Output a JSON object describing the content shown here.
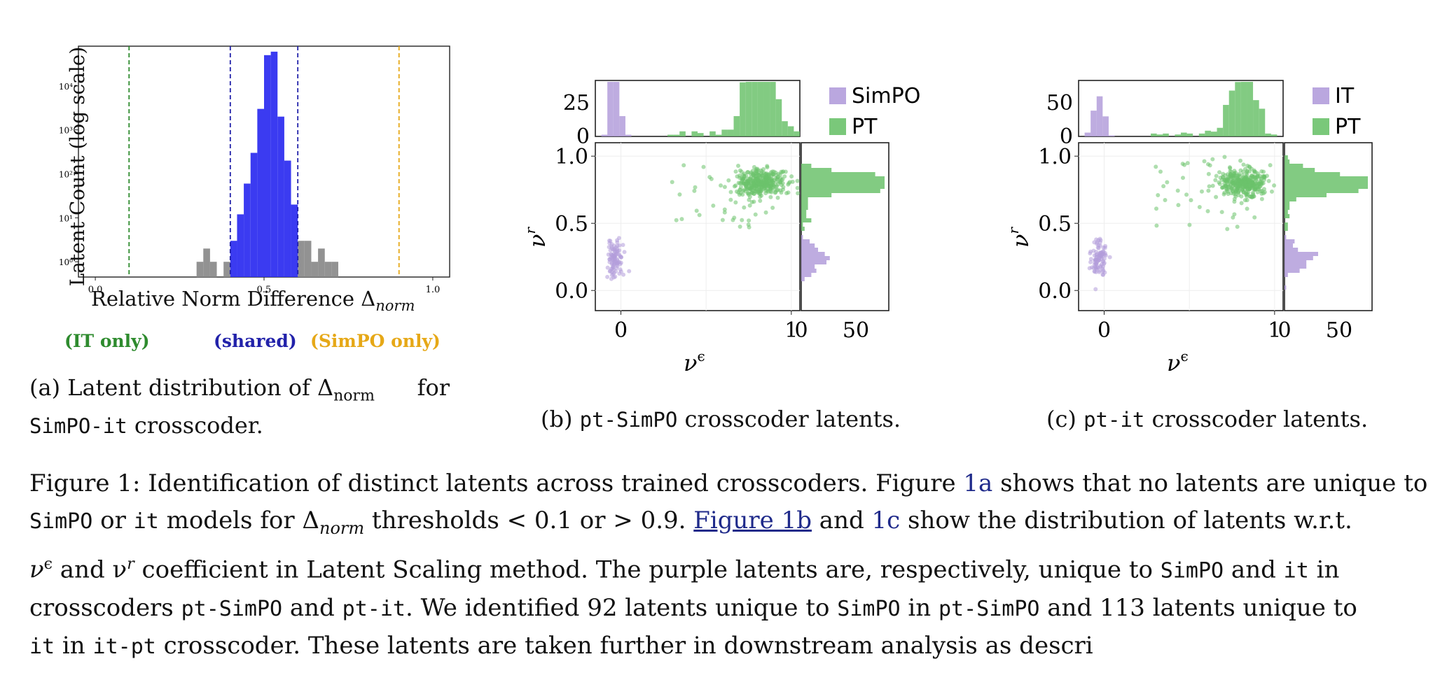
{
  "figure": {
    "panel_a": {
      "chart_data": {
        "type": "bar",
        "ylabel": "Latent Count (log scale)",
        "xlabel_prefix": "Relative Norm Difference Δ",
        "xlabel_sub": "norm",
        "x_ticks": [
          "0.0",
          "0.5",
          "1.0"
        ],
        "y_ticks": [
          "10⁰",
          "10¹",
          "10²",
          "10³",
          "10⁴"
        ],
        "y_scale": "log",
        "xlim": [
          -0.05,
          1.05
        ],
        "thresholds": [
          {
            "x": 0.1,
            "color": "#2e8b2e"
          },
          {
            "x": 0.4,
            "color": "#2222aa"
          },
          {
            "x": 0.6,
            "color": "#2222aa"
          },
          {
            "x": 0.9,
            "color": "#e6a817"
          }
        ],
        "bin_width": 0.02,
        "bins_gray": [
          {
            "x": 0.3,
            "count": 1
          },
          {
            "x": 0.32,
            "count": 2
          },
          {
            "x": 0.34,
            "count": 1
          },
          {
            "x": 0.38,
            "count": 1
          },
          {
            "x": 0.6,
            "count": 3
          },
          {
            "x": 0.62,
            "count": 3
          },
          {
            "x": 0.64,
            "count": 1
          },
          {
            "x": 0.66,
            "count": 2
          },
          {
            "x": 0.68,
            "count": 1
          },
          {
            "x": 0.7,
            "count": 1
          }
        ],
        "bins_blue": [
          {
            "x": 0.4,
            "count": 3
          },
          {
            "x": 0.42,
            "count": 12
          },
          {
            "x": 0.44,
            "count": 60
          },
          {
            "x": 0.46,
            "count": 300
          },
          {
            "x": 0.48,
            "count": 3000
          },
          {
            "x": 0.5,
            "count": 50000
          },
          {
            "x": 0.52,
            "count": 60000
          },
          {
            "x": 0.54,
            "count": 2000
          },
          {
            "x": 0.56,
            "count": 200
          },
          {
            "x": 0.58,
            "count": 20
          }
        ],
        "region_labels": [
          {
            "text": "(IT only)",
            "color": "#2e8b2e"
          },
          {
            "text": "(shared)",
            "color": "#2222aa"
          },
          {
            "text": "(SimPO only)",
            "color": "#e6a817"
          }
        ]
      },
      "caption_prefix": "(a) Latent distribution of Δ",
      "caption_sub": "norm",
      "caption_suffix": " for",
      "caption_mono": "SimPO-it",
      "caption_end": " crosscoder."
    },
    "panel_b": {
      "chart_data": {
        "type": "scatter",
        "xlabel": "ν",
        "xlabel_sup": "ϵ",
        "ylabel": "ν",
        "ylabel_sup": "r",
        "x_ticks": [
          "0",
          "1"
        ],
        "y_ticks": [
          "0.0",
          "0.5",
          "1.0"
        ],
        "top_hist_ticks": [
          "0",
          "25"
        ],
        "right_hist_ticks": [
          "0",
          "50"
        ],
        "series": [
          {
            "name": "SimPO",
            "color": "#b39ddb"
          },
          {
            "name": "PT",
            "color": "#6cc26c"
          }
        ]
      },
      "caption_prefix": "(b) ",
      "caption_mono": "pt-SimPO",
      "caption_end": " crosscoder latents."
    },
    "panel_c": {
      "chart_data": {
        "type": "scatter",
        "xlabel": "ν",
        "xlabel_sup": "ϵ",
        "ylabel": "ν",
        "ylabel_sup": "r",
        "x_ticks": [
          "0",
          "1"
        ],
        "y_ticks": [
          "0.0",
          "0.5",
          "1.0"
        ],
        "top_hist_ticks": [
          "0",
          "50"
        ],
        "right_hist_ticks": [
          "0",
          "50"
        ],
        "series": [
          {
            "name": "IT",
            "color": "#b39ddb"
          },
          {
            "name": "PT",
            "color": "#6cc26c"
          }
        ]
      },
      "caption_prefix": "(c) ",
      "caption_mono": "pt-it",
      "caption_end": " crosscoder latents."
    }
  },
  "caption": {
    "l1_a": "Figure 1: Identification of distinct latents across trained crosscoders. Figure ",
    "l1_ref": "1a",
    "l1_b": " shows that no latents are unique to",
    "l2_m1": "SimPO",
    "l2_a": " or ",
    "l2_m2": "it",
    "l2_b": " models for Δ",
    "l2_sub": "norm",
    "l2_c": " thresholds < 0.1 or > 0.9. ",
    "l2_ref1": "Figure 1b",
    "l2_d": " and ",
    "l2_ref2": "1c",
    "l2_e": " show the distribution of latents w.r.t.",
    "l3_a": "ν",
    "l3_a_sup": "ϵ",
    "l3_b": " and ν",
    "l3_b_sup": "r",
    "l3_c": " coefficient in Latent Scaling method. The purple latents are, respectively, unique to ",
    "l3_m1": "SimPO",
    "l3_d": " and ",
    "l3_m2": "it",
    "l3_e": " in",
    "l4_a": "crosscoders ",
    "l4_m1": "pt-SimPO",
    "l4_b": " and ",
    "l4_m2": "pt-it",
    "l4_c": ". We identified 92 latents unique to ",
    "l4_m3": "SimPO",
    "l4_d": " in ",
    "l4_m4": "pt-SimPO",
    "l4_e": " and 113 latents unique to",
    "l5_m1": "it",
    "l5_a": " in ",
    "l5_m2": "it-pt",
    "l5_b": " crosscoder. These latents are taken further in downstream analysis as descri"
  }
}
